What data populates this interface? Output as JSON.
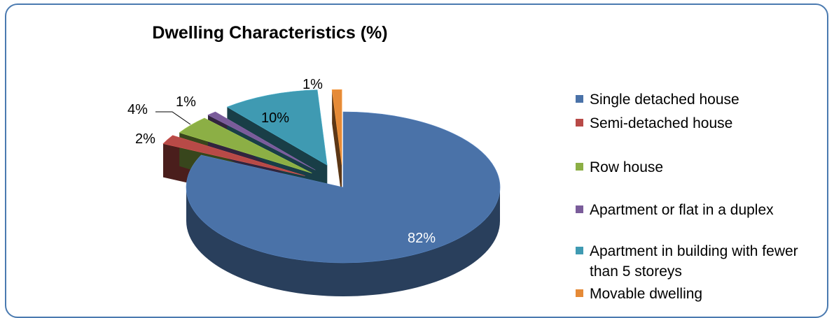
{
  "chart_data": {
    "type": "pie",
    "title": "Dwelling Characteristics (%)",
    "slices": [
      {
        "label": "Single detached house",
        "value": 82,
        "display": "82%",
        "color": "#4a72a8"
      },
      {
        "label": "Semi-detached house",
        "value": 2,
        "display": "2%",
        "color": "#b84a47"
      },
      {
        "label": "Row house",
        "value": 4,
        "display": "4%",
        "color": "#8caf45"
      },
      {
        "label": "Apartment or flat in a duplex",
        "value": 1,
        "display": "1%",
        "color": "#7a5c9a"
      },
      {
        "label": "Apartment in building with fewer than 5 storeys",
        "value": 10,
        "display": "10%",
        "color": "#3f9ab2"
      },
      {
        "label": "Movable dwelling",
        "value": 1,
        "display": "1%",
        "color": "#e58a37"
      }
    ],
    "legend_position": "right",
    "style": "3d-exploded"
  }
}
